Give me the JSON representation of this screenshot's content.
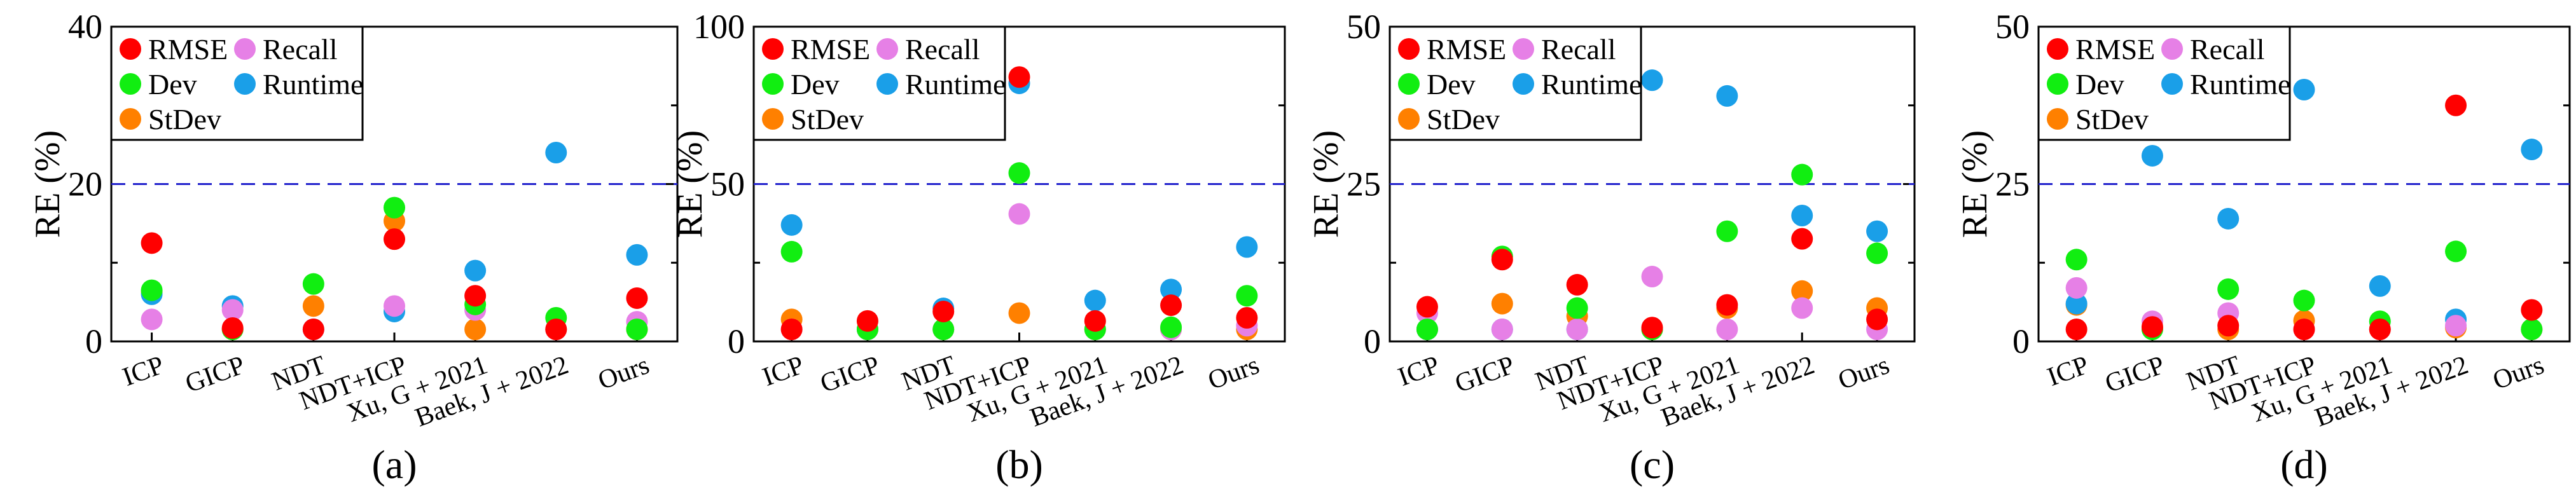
{
  "series_colors": {
    "RMSE": "#ff0000",
    "Recall": "#e680e6",
    "Dev": "#11ee11",
    "Runtime": "#1a9fe8",
    "StDev": "#ff8000"
  },
  "threshold_color": "#2222cc",
  "chart_data": [
    {
      "type": "scatter",
      "panel_label": "(a)",
      "ylabel": "RE (%)",
      "ylim": [
        0,
        40
      ],
      "yticks": [
        "0",
        "20",
        "40"
      ],
      "threshold": 20,
      "categories": [
        "ICP",
        "GICP",
        "NDT",
        "NDT+ICP",
        "Xu, G + 2021",
        "Baek, J + 2022",
        "Ours"
      ],
      "legend": [
        "RMSE",
        "Recall",
        "Dev",
        "Runtime",
        "StDev"
      ],
      "series": [
        {
          "name": "RMSE",
          "values": [
            12.5,
            1.7,
            1.2,
            13.0,
            5.8,
            1.0,
            5.5
          ]
        },
        {
          "name": "Recall",
          "values": [
            2.8,
            4.0,
            1.5,
            4.5,
            4.0,
            0.5,
            2.5
          ]
        },
        {
          "name": "Dev",
          "values": [
            6.5,
            0.8,
            7.3,
            17.0,
            4.7,
            3.0,
            1.0
          ]
        },
        {
          "name": "Runtime",
          "values": [
            6.0,
            4.5,
            1.0,
            3.8,
            9.0,
            24.0,
            11.0
          ]
        },
        {
          "name": "StDev",
          "values": [
            6.3,
            1.3,
            4.5,
            15.3,
            0.2,
            1.2,
            0.5
          ]
        }
      ]
    },
    {
      "type": "scatter",
      "panel_label": "(b)",
      "ylabel": "RE (%)",
      "ylim": [
        0,
        100
      ],
      "yticks": [
        "0",
        "50",
        "100"
      ],
      "threshold": 50,
      "categories": [
        "ICP",
        "GICP",
        "NDT",
        "NDT+ICP",
        "Xu, G + 2021",
        "Baek, J + 2022",
        "Ours"
      ],
      "legend": [
        "RMSE",
        "Recall",
        "Dev",
        "Runtime",
        "StDev"
      ],
      "series": [
        {
          "name": "RMSE",
          "values": [
            3.0,
            6.5,
            9.5,
            84.0,
            6.5,
            11.5,
            7.5
          ]
        },
        {
          "name": "Recall",
          "values": [
            3.5,
            2.0,
            3.5,
            40.5,
            2.5,
            1.0,
            5.0
          ]
        },
        {
          "name": "Dev",
          "values": [
            28.5,
            3.0,
            2.5,
            53.5,
            3.0,
            4.5,
            14.5
          ]
        },
        {
          "name": "Runtime",
          "values": [
            37.0,
            2.0,
            10.5,
            82.0,
            13.0,
            16.5,
            30.0
          ]
        },
        {
          "name": "StDev",
          "values": [
            7.0,
            0.5,
            0.5,
            9.0,
            0.5,
            0.5,
            2.0
          ]
        }
      ]
    },
    {
      "type": "scatter",
      "panel_label": "(c)",
      "ylabel": "RE (%)",
      "ylim": [
        0,
        50
      ],
      "yticks": [
        "0",
        "25",
        "50"
      ],
      "threshold": 25,
      "categories": [
        "ICP",
        "GICP",
        "NDT",
        "NDT+ICP",
        "Xu, G + 2021",
        "Baek, J + 2022",
        "Ours"
      ],
      "legend": [
        "RMSE",
        "Recall",
        "Dev",
        "Runtime",
        "StDev"
      ],
      "series": [
        {
          "name": "RMSE",
          "values": [
            5.5,
            13.0,
            9.0,
            2.2,
            5.8,
            16.3,
            3.5
          ]
        },
        {
          "name": "Recall",
          "values": [
            4.5,
            0.3,
            1.2,
            10.3,
            0.3,
            5.3,
            1.5
          ]
        },
        {
          "name": "Dev",
          "values": [
            0.8,
            13.5,
            5.3,
            1.5,
            17.5,
            26.5,
            14.0
          ]
        },
        {
          "name": "Runtime",
          "values": [
            1.0,
            0.5,
            0.8,
            41.5,
            39.0,
            20.0,
            17.5
          ]
        },
        {
          "name": "StDev",
          "values": [
            0.8,
            6.0,
            4.0,
            1.0,
            5.3,
            8.0,
            5.3
          ]
        }
      ]
    },
    {
      "type": "scatter",
      "panel_label": "(d)",
      "ylabel": "RE (%)",
      "ylim": [
        0,
        50
      ],
      "yticks": [
        "0",
        "25",
        "50"
      ],
      "threshold": 25,
      "categories": [
        "ICP",
        "GICP",
        "NDT",
        "NDT+ICP",
        "Xu, G + 2021",
        "Baek, J + 2022",
        "Ours"
      ],
      "legend": [
        "RMSE",
        "Recall",
        "Dev",
        "Runtime",
        "StDev"
      ],
      "series": [
        {
          "name": "RMSE",
          "values": [
            0.5,
            2.3,
            2.5,
            0.3,
            1.0,
            37.5,
            5.0
          ]
        },
        {
          "name": "Recall",
          "values": [
            8.5,
            3.2,
            4.5,
            1.5,
            1.5,
            2.5,
            1.0
          ]
        },
        {
          "name": "Dev",
          "values": [
            13.0,
            0.8,
            8.3,
            6.5,
            3.2,
            14.3,
            0.8
          ]
        },
        {
          "name": "Runtime",
          "values": [
            6.0,
            29.5,
            19.5,
            40.0,
            8.8,
            3.5,
            30.5
          ]
        },
        {
          "name": "StDev",
          "values": [
            5.8,
            2.0,
            1.8,
            3.3,
            1.5,
            2.2,
            1.3
          ]
        }
      ]
    }
  ]
}
